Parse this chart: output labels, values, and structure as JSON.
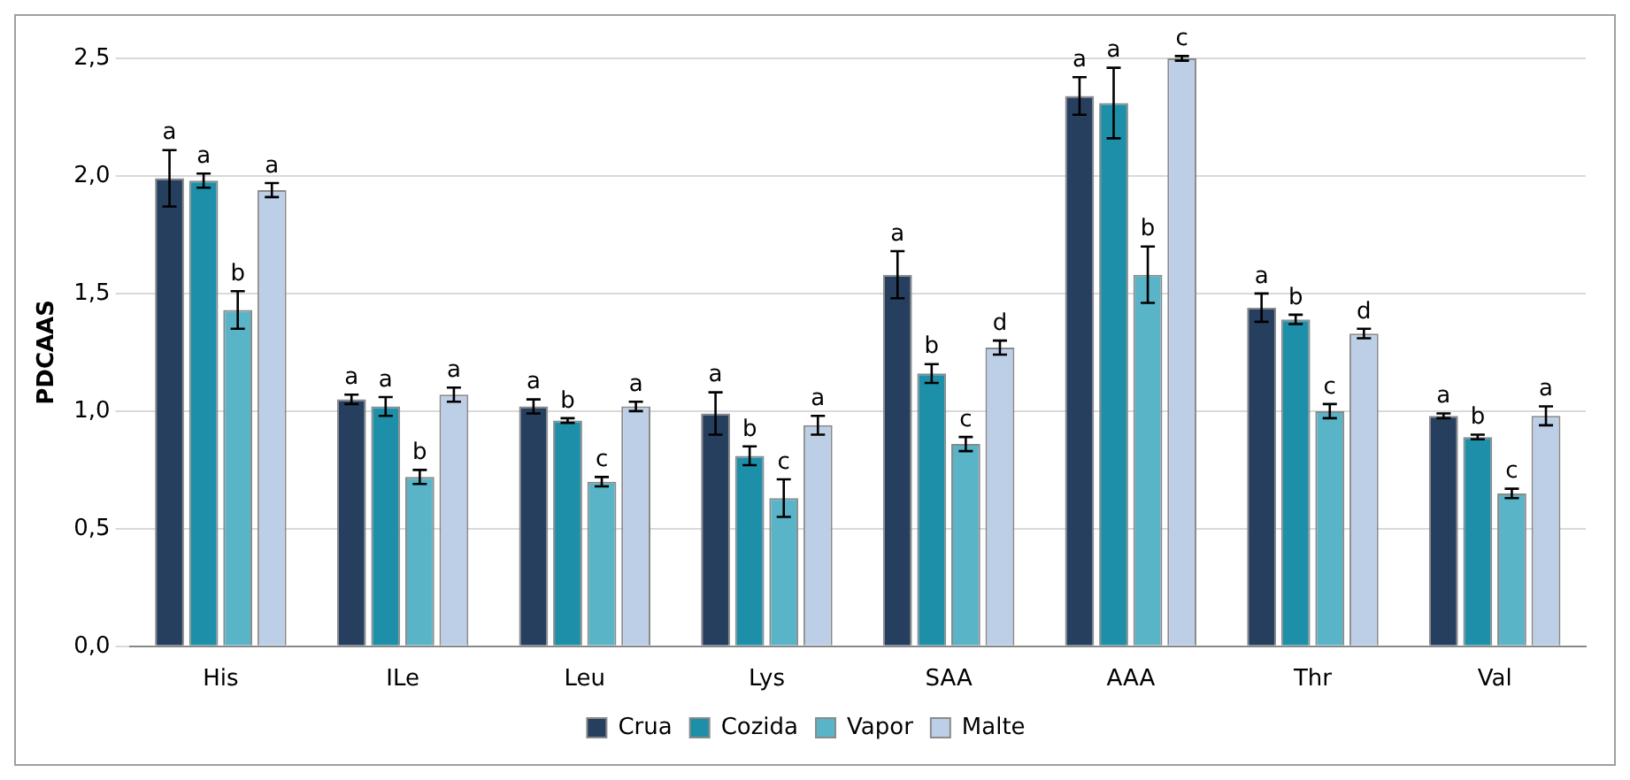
{
  "chart_data": {
    "type": "bar",
    "ylabel": "PDCAAS",
    "categories": [
      "His",
      "ILe",
      "Leu",
      "Lys",
      "SAA",
      "AAA",
      "Thr",
      "Val"
    ],
    "series": [
      {
        "name": "Crua",
        "color": "#263f5f",
        "values": [
          1.99,
          1.05,
          1.02,
          0.99,
          1.58,
          2.34,
          1.44,
          0.98
        ],
        "errors": [
          0.12,
          0.02,
          0.03,
          0.09,
          0.1,
          0.08,
          0.06,
          0.01
        ],
        "value_labels": [
          "a",
          "a",
          "a",
          "a",
          "a",
          "a",
          "a",
          "a"
        ]
      },
      {
        "name": "Cozida",
        "color": "#1e8fa8",
        "values": [
          1.98,
          1.02,
          0.96,
          0.81,
          1.16,
          2.31,
          1.39,
          0.89
        ],
        "errors": [
          0.03,
          0.04,
          0.01,
          0.04,
          0.04,
          0.15,
          0.02,
          0.01
        ],
        "value_labels": [
          "a",
          "a",
          "b",
          "b",
          "b",
          "a",
          "b",
          "b"
        ]
      },
      {
        "name": "Vapor",
        "color": "#5ab4c8",
        "values": [
          1.43,
          0.72,
          0.7,
          0.63,
          0.86,
          1.58,
          1.0,
          0.65
        ],
        "errors": [
          0.08,
          0.03,
          0.02,
          0.08,
          0.03,
          0.12,
          0.03,
          0.02
        ],
        "value_labels": [
          "b",
          "b",
          "c",
          "c",
          "c",
          "b",
          "c",
          "c"
        ]
      },
      {
        "name": "Malte",
        "color": "#bccfe6",
        "values": [
          1.94,
          1.07,
          1.02,
          0.94,
          1.27,
          2.5,
          1.33,
          0.98
        ],
        "errors": [
          0.03,
          0.03,
          0.02,
          0.04,
          0.03,
          0.01,
          0.02,
          0.04
        ],
        "value_labels": [
          "a",
          "a",
          "a",
          "a",
          "d",
          "c",
          "d",
          "a"
        ]
      }
    ],
    "ylim": [
      0,
      2.5
    ],
    "yticks": [
      {
        "value": 0,
        "label": "0,0"
      },
      {
        "value": 0.5,
        "label": "0,5"
      },
      {
        "value": 1,
        "label": "1,0"
      },
      {
        "value": 1.5,
        "label": "1,5"
      },
      {
        "value": 2,
        "label": "2,0"
      },
      {
        "value": 2.5,
        "label": "2,5"
      }
    ],
    "grid": "y",
    "legend": "bottom"
  }
}
